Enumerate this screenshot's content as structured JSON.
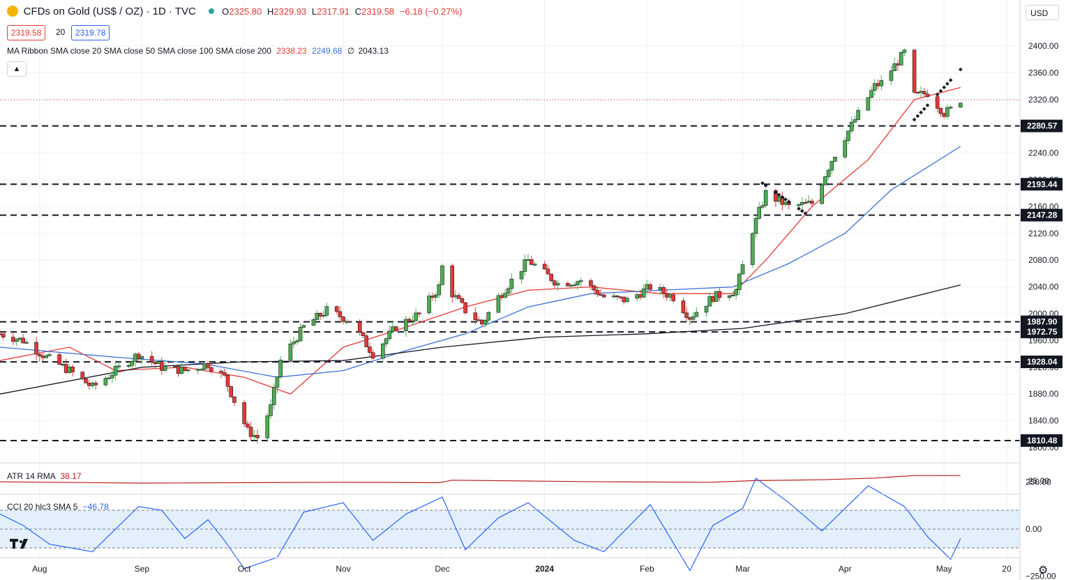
{
  "header": {
    "symbol_title": "CFDs on Gold (US$ / OZ) · 1D · TVC",
    "ohlc_o_label": "O",
    "ohlc_o": "2325.80",
    "ohlc_h_label": "H",
    "ohlc_h": "2329.93",
    "ohlc_l_label": "L",
    "ohlc_l": "2317.91",
    "ohlc_c_label": "C",
    "ohlc_c": "2319.58",
    "change": "−6.18 (−0.27%)",
    "bid": "2319.58",
    "spread": "20",
    "ask": "2319.78",
    "ma_ribbon_label": "MA Ribbon SMA close 20 SMA close 50 SMA close 100 SMA close 200",
    "ma20_value": "2338.23",
    "ma50_value": "2249.68",
    "ma100_value": "∅",
    "ma200_value": "2043.13",
    "currency": "USD"
  },
  "atr": {
    "label": "ATR 14 RMA",
    "value": "38.17"
  },
  "cci": {
    "label": "CCI 20 hlc3 SMA 5",
    "value": "−46.78"
  },
  "colors": {
    "up": "#4caf50",
    "down": "#e53935",
    "ma20": "#e53935",
    "ma50": "#3a6fd8",
    "ma200": "#131722",
    "atr": "#b71c1c",
    "cci": "#2962ff",
    "cci_band": "#e3f0fb",
    "grid": "#eef0f3",
    "text": "#131722"
  },
  "chart_data": [
    {
      "type": "candlestick",
      "title": "CFDs on Gold (US$ / OZ) · 1D · TVC",
      "y_axis": {
        "ticks": [
          1800,
          1840,
          1880,
          1920,
          1960,
          2000,
          2040,
          2080,
          2120,
          2160,
          2200,
          2240,
          2280,
          2320,
          2360,
          2400
        ],
        "tick_labels": [
          "1800.00",
          "1840.00",
          "1880.00",
          "1920.00",
          "1960.00",
          "2000.00",
          "2040.00",
          "2080.00",
          "2120.00",
          "2160.00",
          "2200.00",
          "2240.00",
          "2280.00",
          "2320.00",
          "2360.00",
          "2400.00"
        ],
        "range": [
          1790,
          2420
        ]
      },
      "x_axis": {
        "labels": [
          "Aug",
          "Sep",
          "Oct",
          "Nov",
          "Dec",
          "2024",
          "Feb",
          "Mar",
          "Apr",
          "May",
          "20"
        ],
        "range": [
          "2023-07-20",
          "2024-05-24"
        ]
      },
      "horizontal_levels": [
        {
          "value": 2280.57,
          "label": "2280.57"
        },
        {
          "value": 2193.44,
          "label": "2193.44"
        },
        {
          "value": 2147.28,
          "label": "2147.28"
        },
        {
          "value": 1987.9,
          "label": "1987.90"
        },
        {
          "value": 1972.75,
          "label": "1972.75"
        },
        {
          "value": 1928.04,
          "label": "1928.04"
        },
        {
          "value": 1810.48,
          "label": "1810.48"
        }
      ],
      "current_price": 2319.58,
      "price_path": [
        [
          "2023-07-20",
          1970
        ],
        [
          "2023-07-27",
          1960
        ],
        [
          "2023-08-03",
          1935
        ],
        [
          "2023-08-10",
          1915
        ],
        [
          "2023-08-17",
          1890
        ],
        [
          "2023-08-24",
          1915
        ],
        [
          "2023-08-31",
          1940
        ],
        [
          "2023-09-07",
          1920
        ],
        [
          "2023-09-14",
          1915
        ],
        [
          "2023-09-21",
          1925
        ],
        [
          "2023-09-26",
          1905
        ],
        [
          "2023-09-29",
          1870
        ],
        [
          "2023-10-03",
          1825
        ],
        [
          "2023-10-06",
          1815
        ],
        [
          "2023-10-10",
          1860
        ],
        [
          "2023-10-13",
          1930
        ],
        [
          "2023-10-20",
          1980
        ],
        [
          "2023-10-27",
          2005
        ],
        [
          "2023-11-03",
          1990
        ],
        [
          "2023-11-10",
          1940
        ],
        [
          "2023-11-17",
          1980
        ],
        [
          "2023-11-24",
          2000
        ],
        [
          "2023-11-30",
          2040
        ],
        [
          "2023-12-01",
          2070
        ],
        [
          "2023-12-04",
          2030
        ],
        [
          "2023-12-08",
          2005
        ],
        [
          "2023-12-13",
          1985
        ],
        [
          "2023-12-18",
          2025
        ],
        [
          "2023-12-27",
          2080
        ],
        [
          "2024-01-05",
          2045
        ],
        [
          "2024-01-12",
          2050
        ],
        [
          "2024-01-19",
          2025
        ],
        [
          "2024-01-26",
          2020
        ],
        [
          "2024-02-02",
          2040
        ],
        [
          "2024-02-09",
          2025
        ],
        [
          "2024-02-14",
          1995
        ],
        [
          "2024-02-21",
          2025
        ],
        [
          "2024-02-28",
          2035
        ],
        [
          "2024-03-04",
          2125
        ],
        [
          "2024-03-08",
          2180
        ],
        [
          "2024-03-15",
          2160
        ],
        [
          "2024-03-22",
          2165
        ],
        [
          "2024-03-28",
          2230
        ],
        [
          "2024-04-04",
          2290
        ],
        [
          "2024-04-10",
          2340
        ],
        [
          "2024-04-12",
          2345
        ],
        [
          "2024-04-19",
          2390
        ],
        [
          "2024-04-22",
          2325
        ],
        [
          "2024-04-26",
          2330
        ],
        [
          "2024-05-01",
          2300
        ],
        [
          "2024-05-03",
          2305
        ],
        [
          "2024-05-06",
          2320
        ]
      ],
      "series": [
        {
          "name": "SMA close 20",
          "values": [
            [
              "2023-07-20",
              1930
            ],
            [
              "2023-08-10",
              1950
            ],
            [
              "2023-08-24",
              1915
            ],
            [
              "2023-09-14",
              1920
            ],
            [
              "2023-10-02",
              1905
            ],
            [
              "2023-10-16",
              1880
            ],
            [
              "2023-11-01",
              1950
            ],
            [
              "2023-11-20",
              1980
            ],
            [
              "2023-12-08",
              2010
            ],
            [
              "2023-12-27",
              2035
            ],
            [
              "2024-01-15",
              2040
            ],
            [
              "2024-02-05",
              2030
            ],
            [
              "2024-02-27",
              2030
            ],
            [
              "2024-03-08",
              2080
            ],
            [
              "2024-03-22",
              2160
            ],
            [
              "2024-04-08",
              2230
            ],
            [
              "2024-04-22",
              2320
            ],
            [
              "2024-05-06",
              2338
            ]
          ]
        },
        {
          "name": "SMA close 50",
          "values": [
            [
              "2023-07-20",
              1950
            ],
            [
              "2023-08-24",
              1935
            ],
            [
              "2023-09-20",
              1925
            ],
            [
              "2023-10-12",
              1905
            ],
            [
              "2023-11-01",
              1915
            ],
            [
              "2023-11-20",
              1945
            ],
            [
              "2023-12-08",
              1970
            ],
            [
              "2023-12-27",
              2010
            ],
            [
              "2024-01-15",
              2030
            ],
            [
              "2024-02-05",
              2035
            ],
            [
              "2024-02-27",
              2040
            ],
            [
              "2024-03-15",
              2075
            ],
            [
              "2024-04-01",
              2120
            ],
            [
              "2024-04-15",
              2185
            ],
            [
              "2024-05-06",
              2250
            ]
          ]
        },
        {
          "name": "SMA close 200",
          "values": [
            [
              "2023-07-20",
              1880
            ],
            [
              "2023-09-01",
              1920
            ],
            [
              "2023-10-01",
              1928
            ],
            [
              "2023-11-01",
              1930
            ],
            [
              "2023-12-01",
              1950
            ],
            [
              "2024-01-01",
              1965
            ],
            [
              "2024-02-01",
              1970
            ],
            [
              "2024-03-01",
              1978
            ],
            [
              "2024-04-01",
              2000
            ],
            [
              "2024-05-06",
              2043
            ]
          ]
        }
      ]
    },
    {
      "type": "line",
      "title": "ATR 14 RMA",
      "y_axis": {
        "ticks": [
          25
        ],
        "tick_labels": [
          "25.00"
        ]
      },
      "last_value": 38.17,
      "values": [
        [
          "2023-07-20",
          23
        ],
        [
          "2023-09-01",
          20
        ],
        [
          "2023-10-02",
          21
        ],
        [
          "2023-11-01",
          22
        ],
        [
          "2023-11-30",
          21
        ],
        [
          "2023-12-04",
          27
        ],
        [
          "2023-12-27",
          25
        ],
        [
          "2024-01-20",
          23
        ],
        [
          "2024-02-20",
          22
        ],
        [
          "2024-03-05",
          26
        ],
        [
          "2024-03-25",
          28
        ],
        [
          "2024-04-10",
          32
        ],
        [
          "2024-04-22",
          38
        ],
        [
          "2024-05-06",
          38
        ]
      ]
    },
    {
      "type": "line",
      "title": "CCI 20 hlc3 SMA 5",
      "y_axis": {
        "ticks": [
          250,
          0,
          -250
        ],
        "tick_labels": [
          "250.00",
          "0.00",
          "−250.00"
        ],
        "band": [
          -100,
          100
        ]
      },
      "last_value": -46.78,
      "values": [
        [
          "2023-07-20",
          80
        ],
        [
          "2023-07-27",
          20
        ],
        [
          "2023-08-04",
          -80
        ],
        [
          "2023-08-17",
          -120
        ],
        [
          "2023-08-31",
          120
        ],
        [
          "2023-09-07",
          100
        ],
        [
          "2023-09-14",
          -50
        ],
        [
          "2023-09-21",
          50
        ],
        [
          "2023-09-26",
          -60
        ],
        [
          "2023-10-02",
          -210
        ],
        [
          "2023-10-12",
          -150
        ],
        [
          "2023-10-20",
          90
        ],
        [
          "2023-11-01",
          140
        ],
        [
          "2023-11-10",
          -60
        ],
        [
          "2023-11-20",
          80
        ],
        [
          "2023-12-01",
          170
        ],
        [
          "2023-12-08",
          -110
        ],
        [
          "2023-12-18",
          60
        ],
        [
          "2023-12-27",
          140
        ],
        [
          "2024-01-10",
          -60
        ],
        [
          "2024-01-19",
          -120
        ],
        [
          "2024-02-02",
          130
        ],
        [
          "2024-02-14",
          -220
        ],
        [
          "2024-02-21",
          20
        ],
        [
          "2024-03-01",
          110
        ],
        [
          "2024-03-05",
          270
        ],
        [
          "2024-03-15",
          140
        ],
        [
          "2024-03-25",
          -10
        ],
        [
          "2024-04-08",
          230
        ],
        [
          "2024-04-19",
          120
        ],
        [
          "2024-04-26",
          -40
        ],
        [
          "2024-05-03",
          -160
        ],
        [
          "2024-05-06",
          -50
        ]
      ]
    }
  ]
}
